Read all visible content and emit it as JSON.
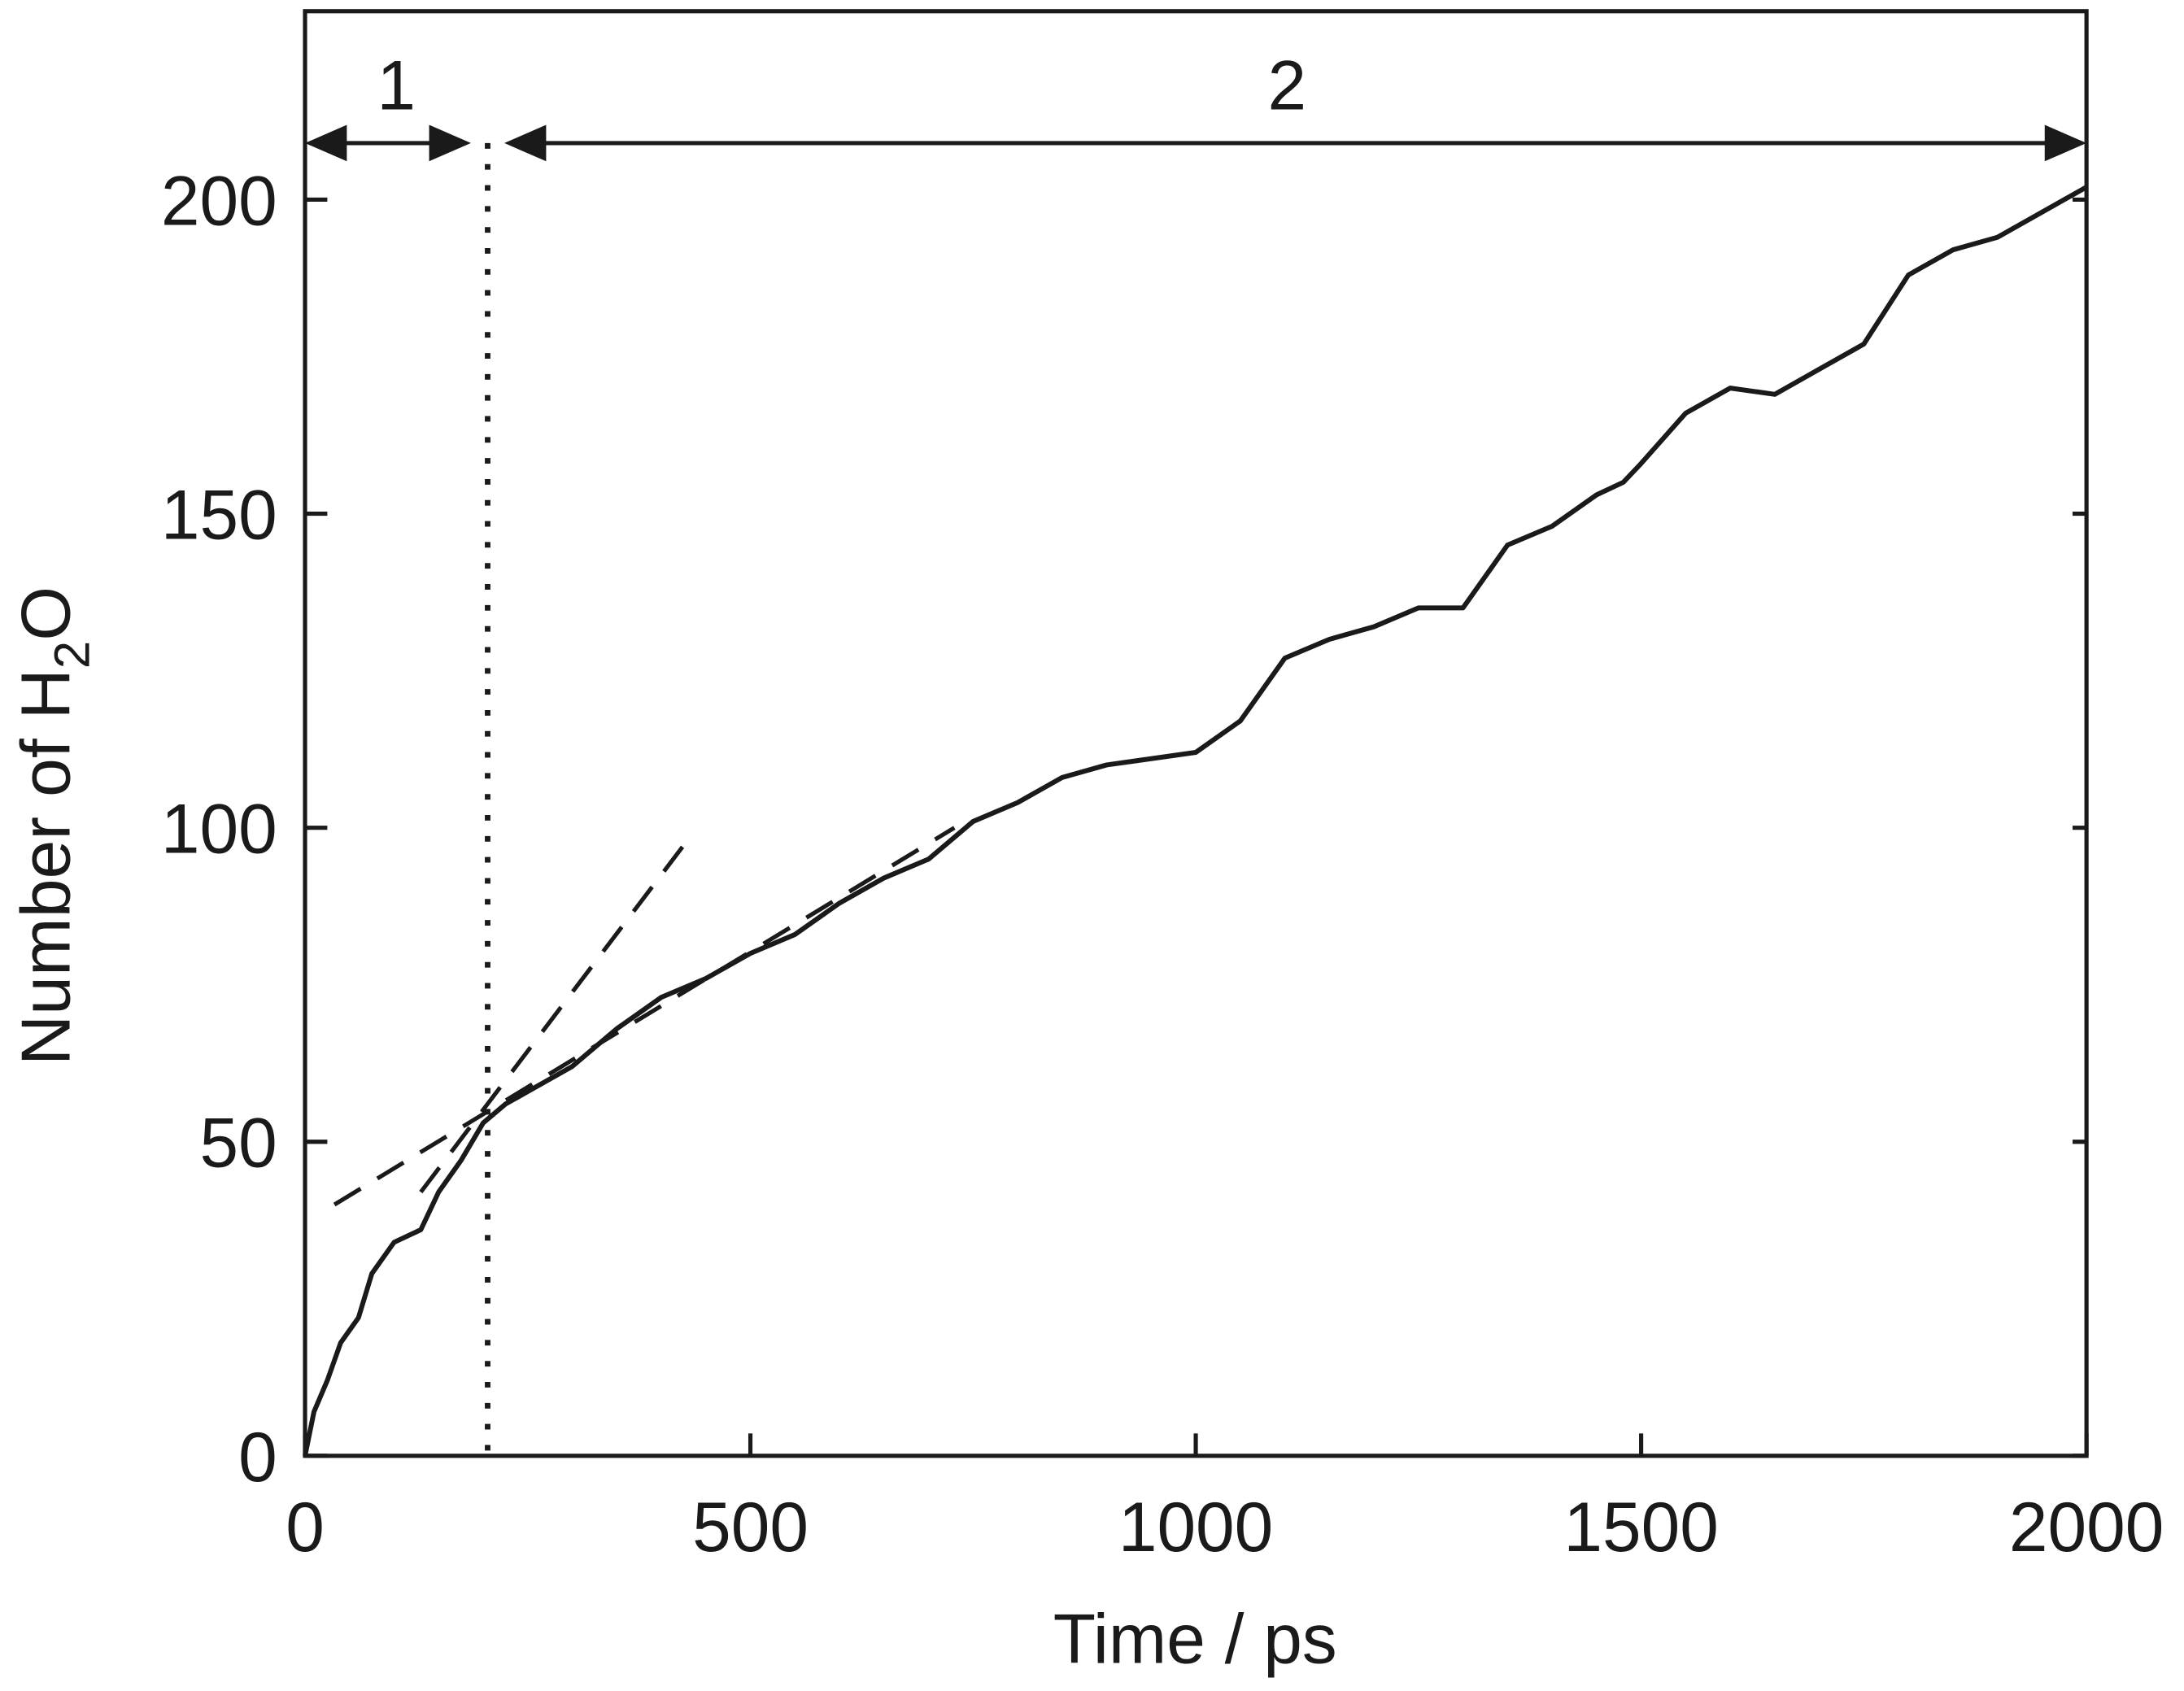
{
  "chart_data": {
    "type": "line",
    "xlabel": "Time / ps",
    "ylabel": {
      "text": "Number of H",
      "sub": "2",
      "tail": "O"
    },
    "xlim": [
      0,
      2000
    ],
    "ylim": [
      0,
      230
    ],
    "xticks": [
      0,
      500,
      1000,
      1500,
      2000
    ],
    "yticks": [
      0,
      50,
      100,
      150,
      200
    ],
    "x": [
      0,
      10,
      25,
      40,
      60,
      75,
      100,
      130,
      150,
      175,
      200,
      225,
      250,
      300,
      350,
      400,
      450,
      500,
      550,
      600,
      650,
      700,
      750,
      800,
      850,
      900,
      950,
      1000,
      1050,
      1100,
      1150,
      1200,
      1250,
      1300,
      1350,
      1400,
      1450,
      1480,
      1500,
      1550,
      1600,
      1650,
      1700,
      1750,
      1800,
      1850,
      1900,
      1950,
      2000
    ],
    "series": [
      {
        "color": "#1a1a1a",
        "values": [
          0,
          7,
          12,
          18,
          22,
          29,
          34,
          36,
          42,
          47,
          53,
          56,
          58,
          62,
          68,
          73,
          76,
          80,
          83,
          88,
          92,
          95,
          101,
          104,
          108,
          110,
          111,
          112,
          117,
          127,
          130,
          132,
          135,
          135,
          145,
          148,
          153,
          155,
          158,
          166,
          170,
          169,
          173,
          177,
          188,
          192,
          194,
          198,
          202
        ]
      }
    ],
    "fits": [
      {
        "x": [
          130,
          424
        ],
        "values": [
          42,
          97
        ]
      },
      {
        "x": [
          33,
          729
        ],
        "values": [
          40,
          100
        ]
      }
    ],
    "divider": 205,
    "region_y": 209,
    "regions": [
      {
        "label": "1",
        "x0": 0,
        "x1": 205
      },
      {
        "label": "2",
        "x0": 205,
        "x1": 2000
      }
    ]
  }
}
